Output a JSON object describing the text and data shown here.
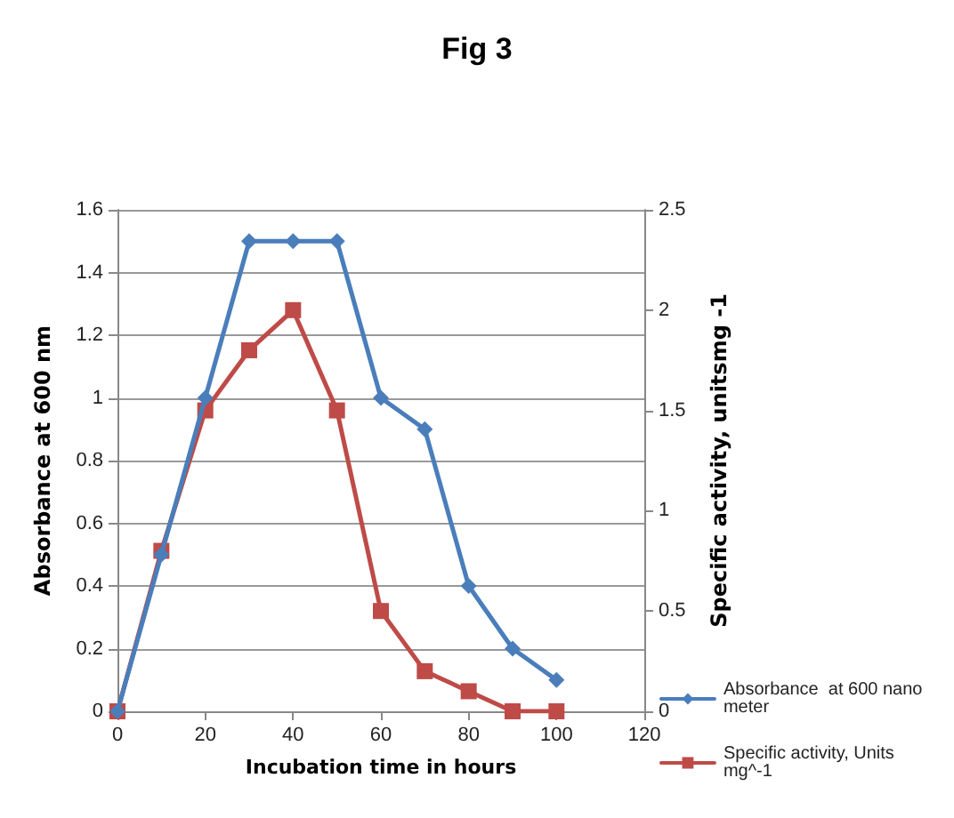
{
  "chart_data": {
    "type": "line",
    "title": "Fig 3",
    "xlabel": "Incubation time in hours",
    "ylabel": "Absorbance at 600 nm",
    "y2label": "Specific activity, unitsmg -1",
    "x": [
      0,
      10,
      20,
      30,
      40,
      50,
      60,
      70,
      80,
      90,
      100
    ],
    "series": [
      {
        "name": "Absorbance  at 600 nano meter",
        "color": "#4a7ebb",
        "marker": "diamond",
        "values": [
          0,
          0.5,
          1.0,
          1.5,
          1.5,
          1.5,
          1.0,
          0.9,
          0.4,
          0.2,
          0.1
        ]
      },
      {
        "name": "Specific activity, Units mg^-1",
        "color": "#be4b48",
        "marker": "square",
        "axis": "y2",
        "values": [
          0,
          0.8,
          1.5,
          1.8,
          2.0,
          1.5,
          0.5,
          0.2,
          0.1,
          0,
          0
        ]
      }
    ],
    "xlim": [
      0,
      120
    ],
    "xticks": [
      0,
      20,
      40,
      60,
      80,
      100,
      120
    ],
    "ylim": [
      0,
      1.6
    ],
    "yticks": [
      0,
      0.2,
      0.4,
      0.6,
      0.8,
      1,
      1.2,
      1.4,
      1.6
    ],
    "y2lim": [
      0,
      2.5
    ],
    "y2ticks": [
      0,
      0.5,
      1,
      1.5,
      2,
      2.5
    ],
    "grid": "y",
    "legend": "right",
    "line_style": "solid"
  }
}
